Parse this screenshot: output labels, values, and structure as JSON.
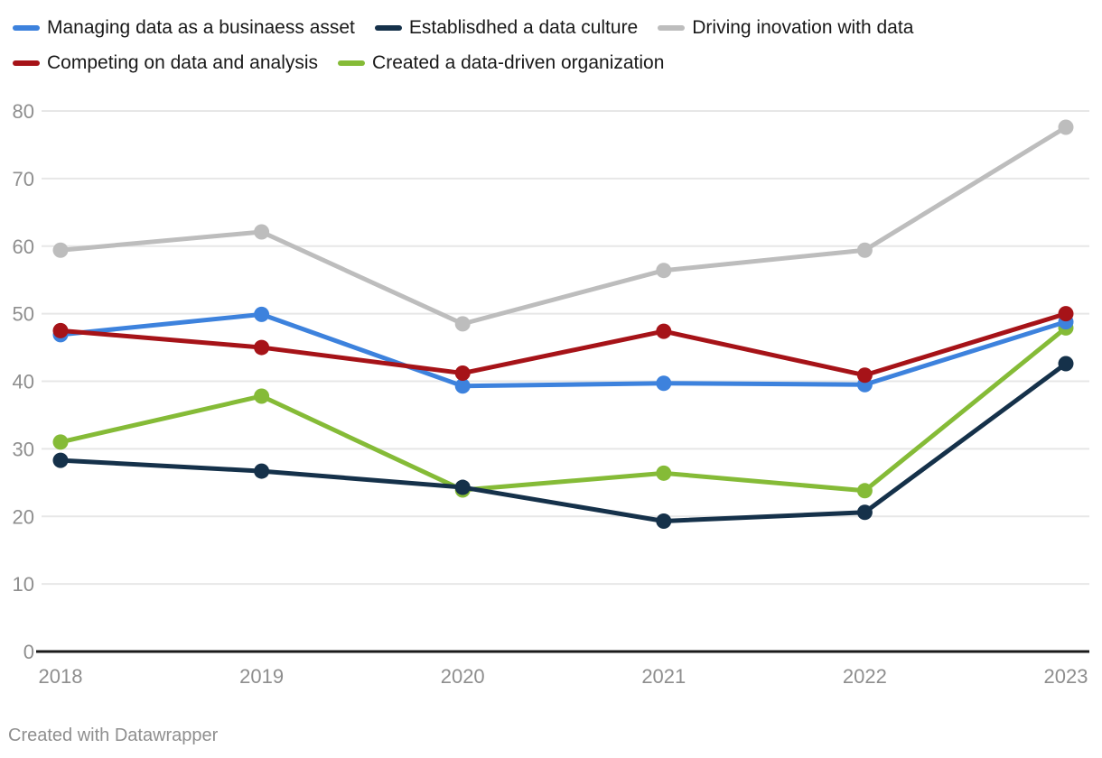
{
  "footer": {
    "credit": "Created with Datawrapper"
  },
  "chart_data": {
    "type": "line",
    "title": "",
    "xlabel": "",
    "ylabel": "",
    "categories": [
      "2018",
      "2019",
      "2020",
      "2021",
      "2022",
      "2023"
    ],
    "series": [
      {
        "name": "Managing data as a businaess asset",
        "color": "#3d82dd",
        "values": [
          46.9,
          49.9,
          39.3,
          39.7,
          39.5,
          48.8
        ]
      },
      {
        "name": "Establisdhed a data culture",
        "color": "#15314a",
        "values": [
          28.3,
          26.7,
          24.3,
          19.3,
          20.6,
          42.6
        ]
      },
      {
        "name": "Driving inovation with data",
        "color": "#bdbdbd",
        "values": [
          59.4,
          62.1,
          48.5,
          56.4,
          59.4,
          77.6
        ]
      },
      {
        "name": "Competing on data and analysis",
        "color": "#a61318",
        "values": [
          47.5,
          45.0,
          41.2,
          47.4,
          40.9,
          50.0
        ]
      },
      {
        "name": "Created a data-driven organization",
        "color": "#85bb37",
        "values": [
          31.0,
          37.8,
          23.9,
          26.4,
          23.8,
          47.9
        ]
      }
    ],
    "y_ticks": [
      0,
      10,
      20,
      30,
      40,
      50,
      60,
      70,
      80
    ],
    "ylim": [
      0,
      80
    ],
    "grid": "horizontal",
    "legend_position": "top",
    "draw_order": [
      2,
      4,
      1,
      0,
      3
    ],
    "axis_color": "#1a1a1a",
    "grid_color": "#e7e7e7",
    "tick_label_color": "#8e8e8e"
  }
}
